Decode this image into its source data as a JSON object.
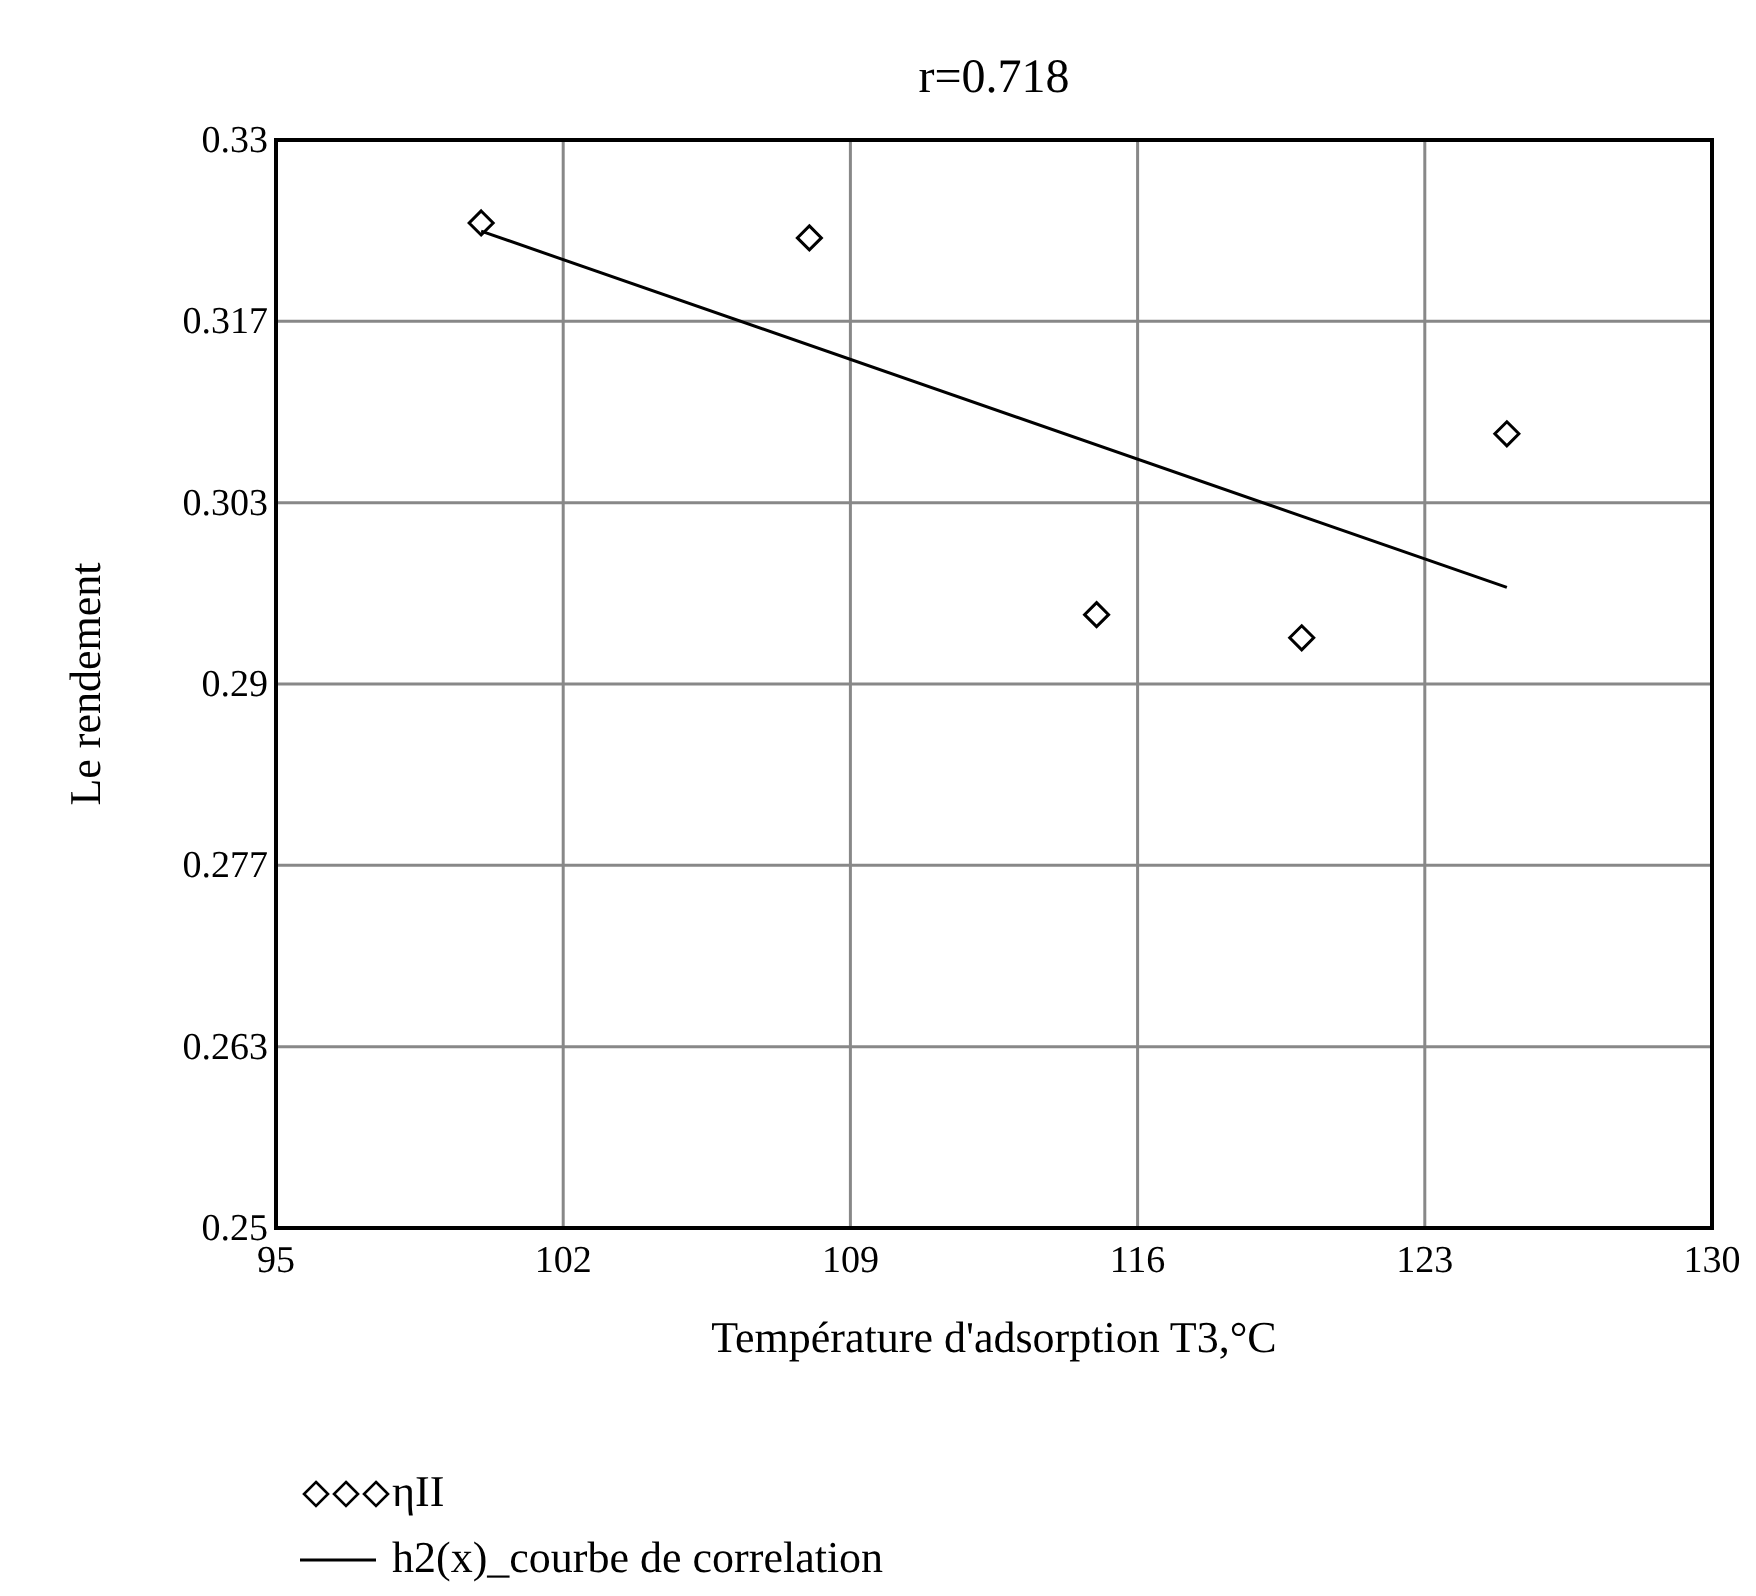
{
  "chart_data": {
    "type": "scatter",
    "title": "r=0.718",
    "xlabel": "Température d'adsorption T3,°C",
    "ylabel": "Le rendement",
    "xlim": [
      95,
      130
    ],
    "xticks": [
      95,
      102,
      109,
      116,
      123,
      130
    ],
    "ylim": [
      0.25,
      0.33
    ],
    "yticks": [
      {
        "value": 0.25,
        "label": "0.25"
      },
      {
        "value": 0.26333,
        "label": "0.263"
      },
      {
        "value": 0.27667,
        "label": "0.277"
      },
      {
        "value": 0.29,
        "label": "0.29"
      },
      {
        "value": 0.30333,
        "label": "0.303"
      },
      {
        "value": 0.31667,
        "label": "0.317"
      },
      {
        "value": 0.33,
        "label": "0.33"
      }
    ],
    "grid": true,
    "legend": "bottom",
    "series": [
      {
        "name": "ηII",
        "marker": "diamond",
        "color": "#000000",
        "x": [
          100,
          108,
          115,
          120,
          125
        ],
        "values": [
          0.3239,
          0.3228,
          0.2951,
          0.2934,
          0.3084
        ]
      },
      {
        "name": "h2(x)_courbe de correlation",
        "type": "line",
        "marker": "none",
        "line_style": "solid",
        "color": "#000000",
        "x": [
          100,
          125
        ],
        "values": [
          0.3233,
          0.2971
        ]
      }
    ]
  }
}
